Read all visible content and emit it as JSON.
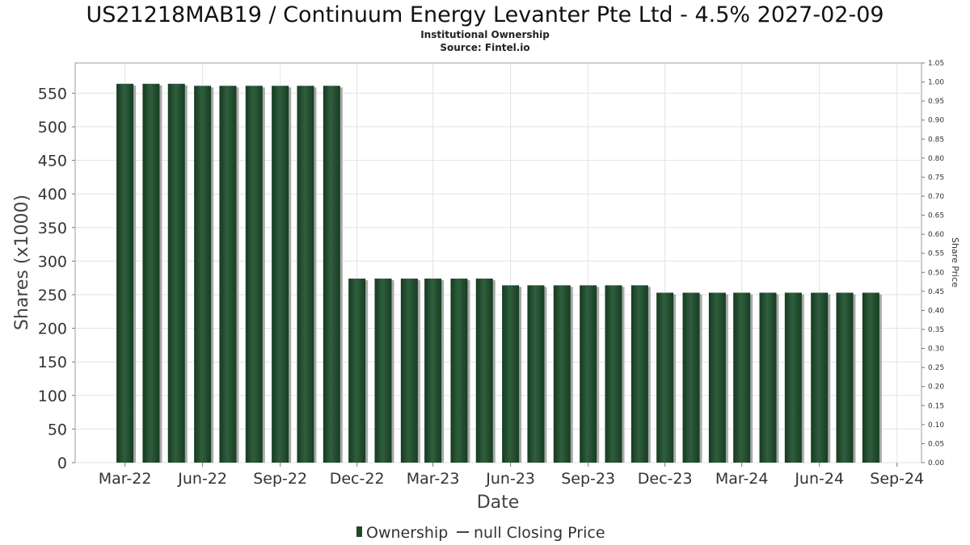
{
  "chart_data": {
    "type": "bar",
    "title": "US21218MAB19 / Continuum Energy Levanter Pte Ltd - 4.5% 2027-02-09",
    "subtitle_lines": [
      "Institutional Ownership",
      "Source: Fintel.io"
    ],
    "xlabel": "Date",
    "ylabel": "Shares (x1000)",
    "y2label": "Share Price",
    "x_tick_labels": [
      "Mar-22",
      "Jun-22",
      "Sep-22",
      "Dec-22",
      "Mar-23",
      "Jun-23",
      "Sep-23",
      "Dec-23",
      "Mar-24",
      "Jun-24",
      "Sep-24"
    ],
    "x_range": [
      "2022-01-01",
      "2024-09-30"
    ],
    "ylim": [
      0,
      595
    ],
    "y_ticks": [
      0,
      50,
      100,
      150,
      200,
      250,
      300,
      350,
      400,
      450,
      500,
      550
    ],
    "y2lim": [
      0,
      1.05
    ],
    "y2_tick_labels": [
      "0.00",
      "0.05",
      "0.10",
      "0.15",
      "0.20",
      "0.25",
      "0.30",
      "0.35",
      "0.40",
      "0.45",
      "0.50",
      "0.55",
      "0.60",
      "0.65",
      "0.70",
      "0.75",
      "0.80",
      "0.85",
      "0.90",
      "0.95",
      "1.00",
      "1.05"
    ],
    "grid": true,
    "legend_position": "bottom-center",
    "series": [
      {
        "name": "Ownership",
        "color": "#1e4a2a",
        "x": [
          "2022-03-01",
          "2022-04-01",
          "2022-05-01",
          "2022-06-01",
          "2022-07-01",
          "2022-08-01",
          "2022-09-01",
          "2022-10-01",
          "2022-11-01",
          "2022-12-01",
          "2023-01-01",
          "2023-02-01",
          "2023-03-01",
          "2023-04-01",
          "2023-05-01",
          "2023-06-01",
          "2023-07-01",
          "2023-08-01",
          "2023-09-01",
          "2023-10-01",
          "2023-11-01",
          "2023-12-01",
          "2024-01-01",
          "2024-02-01",
          "2024-03-01",
          "2024-04-01",
          "2024-05-01",
          "2024-06-01",
          "2024-07-01",
          "2024-08-01"
        ],
        "values": [
          564,
          564,
          564,
          561,
          561,
          561,
          561,
          561,
          561,
          274,
          274,
          274,
          274,
          274,
          274,
          264,
          264,
          264,
          264,
          264,
          264,
          253,
          253,
          253,
          253,
          253,
          253,
          253,
          253,
          253
        ]
      },
      {
        "name": "null Closing Price",
        "color": "#444444",
        "values": []
      }
    ]
  }
}
